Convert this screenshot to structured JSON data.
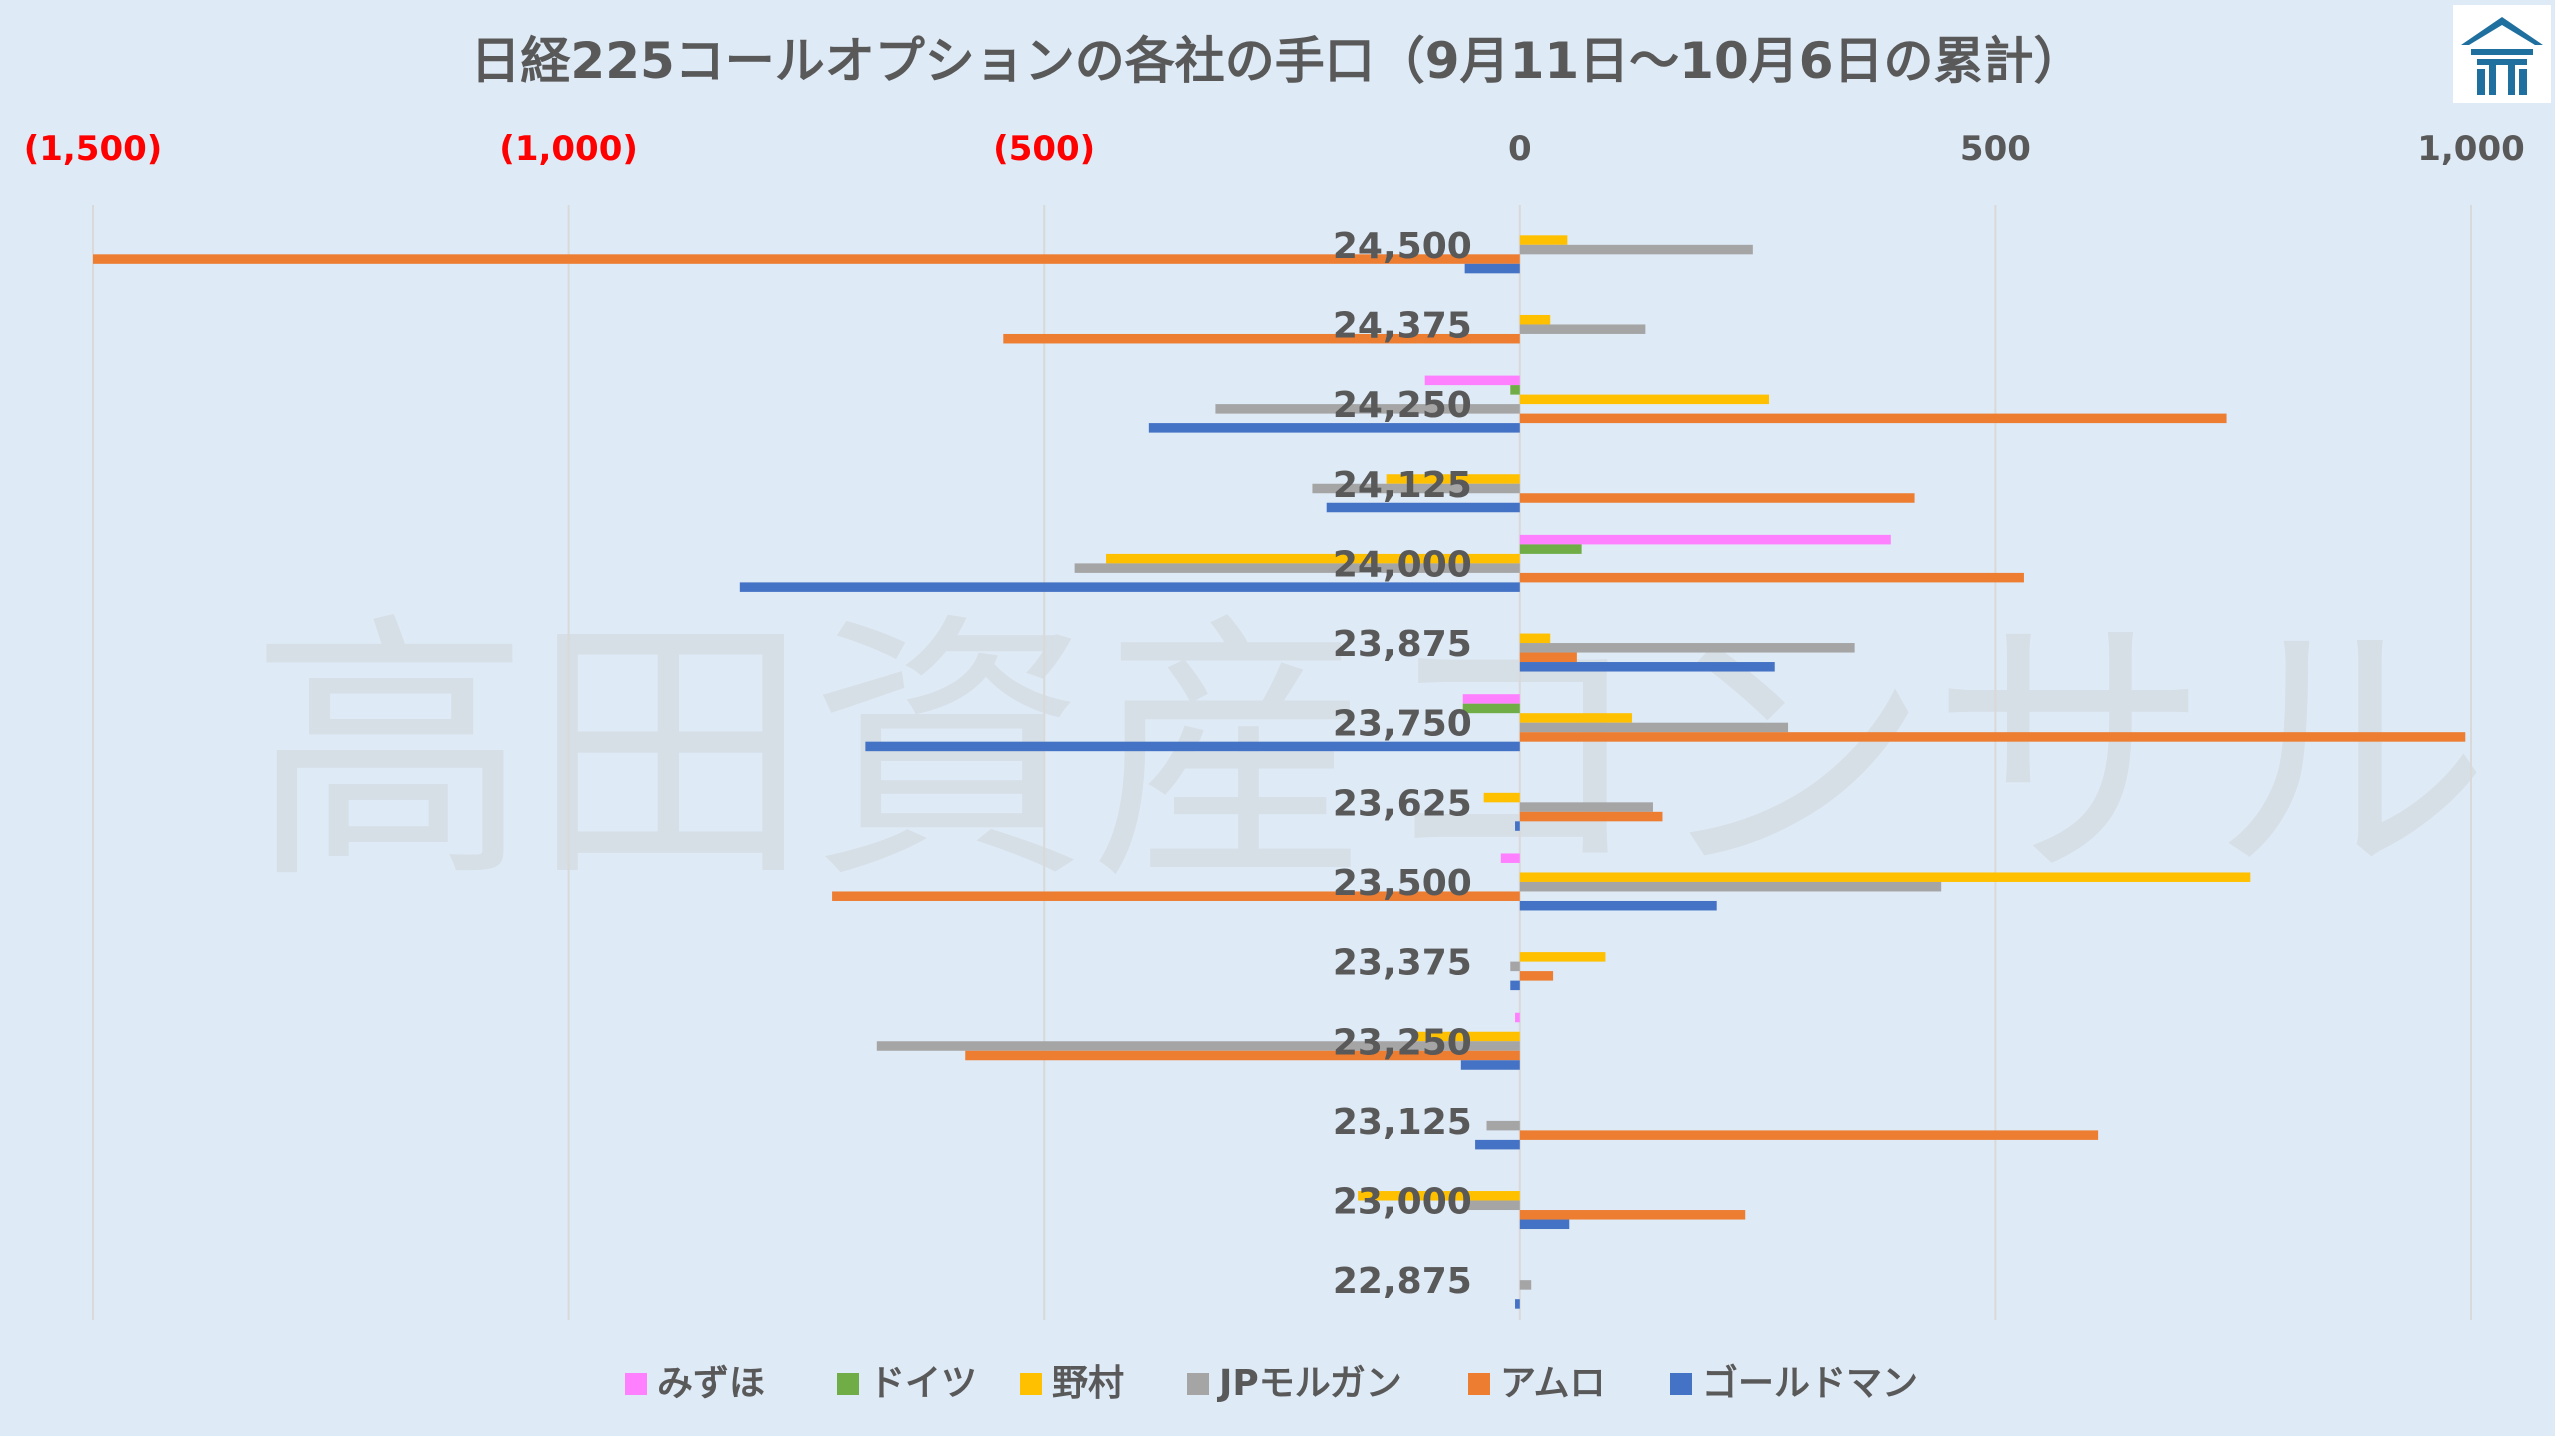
{
  "watermark": "高田資産コンサル",
  "chart_data": {
    "type": "bar",
    "orientation": "horizontal",
    "title": "日経225コールオプションの各社の手口（9月11日～10月6日の累計）",
    "xlim": [
      -1500,
      1000
    ],
    "x_ticks": [
      {
        "value": -1500,
        "label": "(1,500)"
      },
      {
        "value": -1000,
        "label": "(1,000)"
      },
      {
        "value": -500,
        "label": "(500)"
      },
      {
        "value": 0,
        "label": "0"
      },
      {
        "value": 500,
        "label": "500"
      },
      {
        "value": 1000,
        "label": "1,000"
      }
    ],
    "negative_tick_color": "#ff0000",
    "grid": true,
    "legend_position": "bottom",
    "categories": [
      "24,500",
      "24,375",
      "24,250",
      "24,125",
      "24,000",
      "23,875",
      "23,750",
      "23,625",
      "23,500",
      "23,375",
      "23,250",
      "23,125",
      "23,000",
      "22,875"
    ],
    "series": [
      {
        "name": "みずほ",
        "color": "#ff80ff",
        "values": [
          0,
          0,
          -100,
          0,
          390,
          0,
          -60,
          0,
          -20,
          0,
          -5,
          0,
          0,
          0
        ]
      },
      {
        "name": "ドイツ",
        "color": "#70ad47",
        "values": [
          0,
          0,
          -10,
          0,
          65,
          0,
          -60,
          0,
          0,
          0,
          0,
          0,
          0,
          0
        ]
      },
      {
        "name": "野村",
        "color": "#ffc000",
        "values": [
          50,
          32,
          262,
          -140,
          -435,
          32,
          118,
          -38,
          768,
          90,
          -110,
          0,
          -170,
          0
        ]
      },
      {
        "name": "JPモルガン",
        "color": "#a5a5a5",
        "values": [
          245,
          132,
          -320,
          -218,
          -468,
          352,
          282,
          140,
          443,
          -10,
          -676,
          -35,
          -55,
          12
        ]
      },
      {
        "name": "アムロ",
        "color": "#ed7d31",
        "values": [
          -1500,
          -543,
          743,
          415,
          530,
          60,
          994,
          150,
          -723,
          35,
          -583,
          608,
          237,
          0
        ]
      },
      {
        "name": "ゴールドマン",
        "color": "#4472c4",
        "values": [
          -58,
          0,
          -390,
          -203,
          -820,
          268,
          -688,
          -5,
          207,
          -10,
          -62,
          -47,
          52,
          -5
        ]
      }
    ]
  }
}
